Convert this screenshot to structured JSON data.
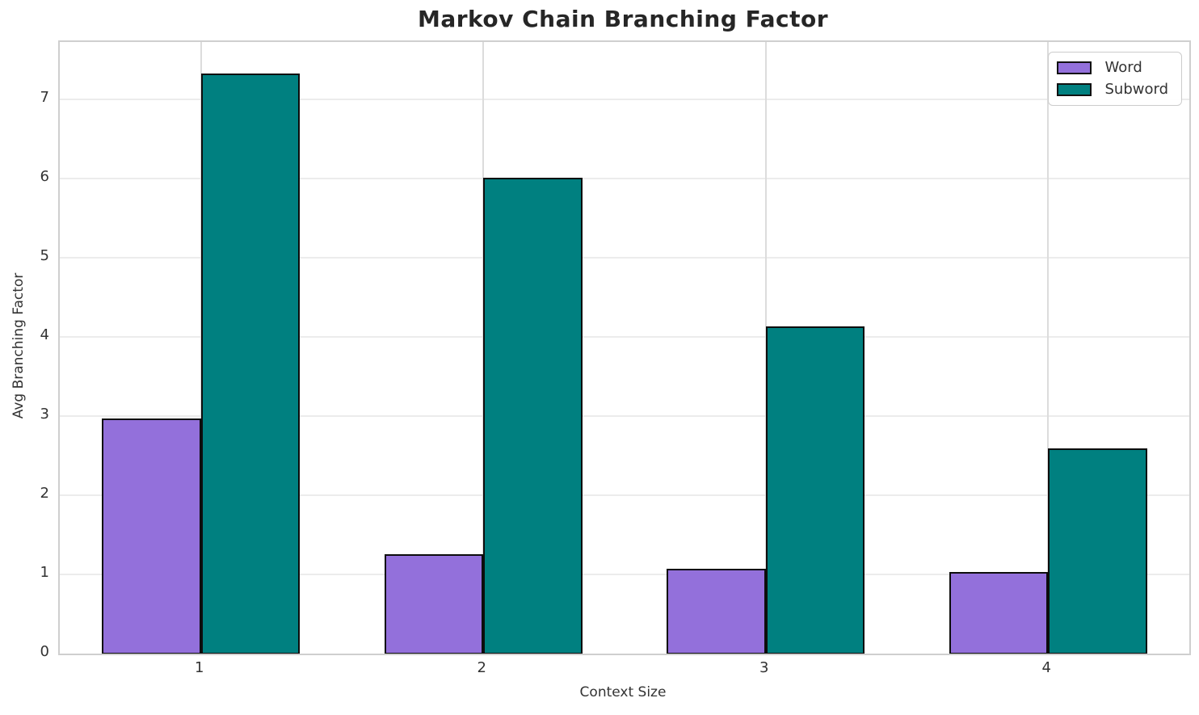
{
  "title": "Markov Chain Branching Factor",
  "chart_data": {
    "type": "bar",
    "title": "Markov Chain Branching Factor",
    "xlabel": "Context Size",
    "ylabel": "Avg Branching Factor",
    "categories": [
      "1",
      "2",
      "3",
      "4"
    ],
    "series": [
      {
        "name": "Word",
        "color": "#9370DB",
        "values": [
          2.97,
          1.25,
          1.07,
          1.03
        ]
      },
      {
        "name": "Subword",
        "color": "#008080",
        "values": [
          7.32,
          6.01,
          4.13,
          2.59
        ]
      }
    ],
    "bar_edge_color": "#0d0d0d",
    "ylim": [
      0,
      7.72
    ],
    "yticks": [
      0,
      1,
      2,
      3,
      4,
      5,
      6,
      7
    ],
    "grid": true,
    "grid_color": "#e8e8e8",
    "legend_position": "upper right",
    "bar_width_fraction": 0.35
  }
}
